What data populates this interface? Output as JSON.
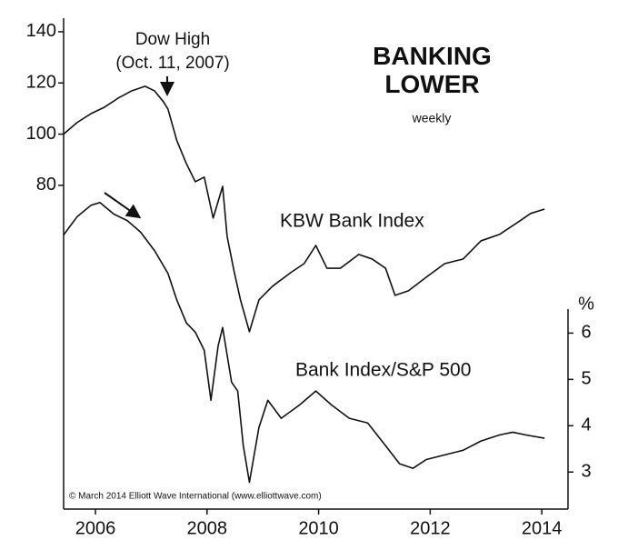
{
  "chart_data": {
    "type": "line",
    "title": "BANKING LOWER",
    "subtitle": "weekly",
    "annotation": [
      "Dow High",
      "(Oct. 11, 2007)"
    ],
    "credit": "© March 2014 Elliott Wave International (www.elliottwave.com)",
    "y2label": "%",
    "xlim": [
      2005.43,
      2014.47
    ],
    "xticks": [
      2006,
      2008,
      2010,
      2012,
      2014
    ],
    "ylim": [
      -46.5,
      145.3
    ],
    "yticks": [
      80,
      100,
      120,
      140
    ],
    "y2lim": [
      2.2,
      12.8
    ],
    "y2ticks": [
      3,
      4,
      5,
      6
    ],
    "series": [
      {
        "name": "KBW Bank Index",
        "color": "#111111",
        "x": [
          2005.43,
          2005.67,
          2005.92,
          2006.16,
          2006.41,
          2006.65,
          2006.89,
          2007.06,
          2007.22,
          2007.3,
          2007.46,
          2007.63,
          2007.79,
          2007.95,
          2008.11,
          2008.28,
          2008.36,
          2008.49,
          2008.6,
          2008.76,
          2008.93,
          2009.17,
          2009.5,
          2009.74,
          2009.95,
          2010.15,
          2010.39,
          2010.72,
          2010.96,
          2011.2,
          2011.37,
          2011.61,
          2011.93,
          2012.26,
          2012.59,
          2012.91,
          2013.24,
          2013.56,
          2013.8,
          2014.05
        ],
        "values": [
          100,
          104.5,
          108.0,
          110.5,
          114.1,
          116.9,
          118.7,
          116.9,
          112.6,
          109.8,
          97.4,
          88.5,
          81.4,
          83.2,
          67.2,
          79.6,
          60.1,
          45.9,
          35.2,
          22.8,
          35.2,
          40.5,
          45.9,
          49.4,
          56.5,
          47.6,
          47.6,
          53.0,
          51.2,
          47.6,
          37.0,
          38.8,
          44.1,
          49.4,
          51.2,
          58.3,
          60.8,
          65.4,
          69.0,
          70.7
        ]
      },
      {
        "name": "Bank Index/S&P 500",
        "color": "#111111",
        "axis": "y2",
        "x": [
          2005.43,
          2005.67,
          2005.92,
          2006.08,
          2006.33,
          2006.57,
          2006.81,
          2007.06,
          2007.3,
          2007.46,
          2007.63,
          2007.79,
          2007.95,
          2008.07,
          2008.2,
          2008.28,
          2008.44,
          2008.55,
          2008.65,
          2008.76,
          2008.93,
          2009.09,
          2009.33,
          2009.66,
          2009.95,
          2010.23,
          2010.55,
          2010.88,
          2011.2,
          2011.45,
          2011.69,
          2011.93,
          2012.26,
          2012.59,
          2012.91,
          2013.24,
          2013.48,
          2013.72,
          2014.05
        ],
        "values": [
          8.12,
          8.51,
          8.76,
          8.82,
          8.57,
          8.43,
          8.18,
          7.78,
          7.29,
          6.71,
          6.22,
          6.02,
          5.63,
          4.55,
          5.73,
          6.12,
          4.94,
          4.75,
          3.57,
          2.78,
          3.96,
          4.55,
          4.16,
          4.45,
          4.75,
          4.45,
          4.16,
          4.06,
          3.57,
          3.18,
          3.08,
          3.27,
          3.37,
          3.47,
          3.67,
          3.8,
          3.86,
          3.8,
          3.73
        ]
      }
    ]
  }
}
